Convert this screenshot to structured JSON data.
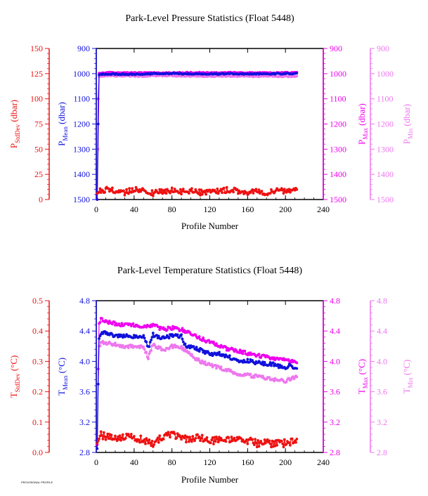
{
  "colors": {
    "stddev": "#ee1111",
    "mean": "#1010dd",
    "max": "#ee00ee",
    "min": "#ee77ee",
    "frame": "#000000"
  },
  "footer": "PROVISIONAL PROFILE",
  "chart_data": [
    {
      "type": "scatter",
      "title": "Park-Level Pressure Statistics (Float 5448)",
      "xlabel": "Profile Number",
      "xlim": [
        0,
        240
      ],
      "xticks": [
        "0",
        "40",
        "80",
        "120",
        "160",
        "200",
        "240"
      ],
      "axes": {
        "stddev": {
          "label_main": "P",
          "label_sub": "StdDev",
          "label_unit": " (dbar)",
          "lim": [
            0,
            150
          ],
          "ticks": [
            "0",
            "25",
            "50",
            "75",
            "100",
            "125",
            "150"
          ]
        },
        "mean": {
          "label_main": "P",
          "label_sub": "Mean",
          "label_unit": " (dbar)",
          "lim": [
            1500,
            900
          ],
          "ticks": [
            "1500",
            "1400",
            "1300",
            "1200",
            "1100",
            "1000",
            "900"
          ]
        },
        "max": {
          "label_main": "P",
          "label_sub": "Max",
          "label_unit": " (dbar)",
          "lim": [
            1500,
            900
          ],
          "ticks": [
            "1500",
            "1400",
            "1300",
            "1200",
            "1100",
            "1000",
            "900"
          ]
        },
        "min": {
          "label_main": "P",
          "label_sub": "Min",
          "label_unit": " (dbar)",
          "lim": [
            1500,
            900
          ],
          "ticks": [
            "1500",
            "1400",
            "1300",
            "1200",
            "1100",
            "1000",
            "900"
          ]
        }
      },
      "series": [
        {
          "key": "mean",
          "profiles": [
            1,
            212
          ],
          "values": [
            [
              1,
              1500
            ],
            [
              2,
              1200
            ],
            [
              3,
              1005
            ],
            [
              10,
              1001
            ],
            [
              30,
              1002
            ],
            [
              50,
              1002
            ],
            [
              60,
              1000
            ],
            [
              80,
              999
            ],
            [
              100,
              1001
            ],
            [
              120,
              1002
            ],
            [
              140,
              1000
            ],
            [
              160,
              1001
            ],
            [
              180,
              1001
            ],
            [
              200,
              1000
            ],
            [
              212,
              999
            ]
          ]
        },
        {
          "key": "max",
          "profiles": [
            1,
            212
          ],
          "values": [
            [
              1,
              1500
            ],
            [
              2,
              1100
            ],
            [
              3,
              998
            ],
            [
              10,
              996
            ],
            [
              30,
              997
            ],
            [
              50,
              996
            ],
            [
              60,
              997
            ],
            [
              80,
              997
            ],
            [
              100,
              996
            ],
            [
              120,
              997
            ],
            [
              140,
              996
            ],
            [
              160,
              997
            ],
            [
              180,
              997
            ],
            [
              200,
              996
            ],
            [
              212,
              996
            ]
          ]
        },
        {
          "key": "min",
          "profiles": [
            1,
            212
          ],
          "values": [
            [
              1,
              1500
            ],
            [
              2,
              1300
            ],
            [
              3,
              1012
            ],
            [
              10,
              1008
            ],
            [
              30,
              1009
            ],
            [
              50,
              1010
            ],
            [
              60,
              1008
            ],
            [
              80,
              1008
            ],
            [
              100,
              1010
            ],
            [
              120,
              1011
            ],
            [
              140,
              1009
            ],
            [
              160,
              1011
            ],
            [
              180,
              1010
            ],
            [
              200,
              1011
            ],
            [
              212,
              1010
            ]
          ]
        },
        {
          "key": "stddev",
          "profiles": [
            1,
            212
          ],
          "values": [
            [
              1,
              6
            ],
            [
              5,
              9
            ],
            [
              10,
              10
            ],
            [
              20,
              9
            ],
            [
              30,
              7
            ],
            [
              40,
              10
            ],
            [
              50,
              9
            ],
            [
              60,
              6
            ],
            [
              70,
              8
            ],
            [
              80,
              9
            ],
            [
              90,
              8
            ],
            [
              100,
              9
            ],
            [
              110,
              7
            ],
            [
              120,
              8
            ],
            [
              130,
              8
            ],
            [
              140,
              10
            ],
            [
              150,
              8
            ],
            [
              160,
              7
            ],
            [
              170,
              8
            ],
            [
              180,
              7
            ],
            [
              190,
              9
            ],
            [
              200,
              8
            ],
            [
              212,
              11
            ]
          ]
        }
      ]
    },
    {
      "type": "scatter",
      "title": "Park-Level Temperature Statistics (Float 5448)",
      "xlabel": "Profile Number",
      "xlim": [
        0,
        240
      ],
      "xticks": [
        "0",
        "40",
        "80",
        "120",
        "160",
        "200",
        "240"
      ],
      "axes": {
        "stddev": {
          "label_main": "T",
          "label_sub": "StdDev",
          "label_unit": " (°C)",
          "lim": [
            0,
            0.5
          ],
          "ticks": [
            "0.0",
            "0.1",
            "0.2",
            "0.3",
            "0.4",
            "0.5"
          ]
        },
        "mean": {
          "label_main": "T",
          "label_sub": "Mean",
          "label_unit": " (°C)",
          "lim": [
            2.8,
            4.8
          ],
          "ticks": [
            "2.8",
            "3.2",
            "3.6",
            "4.0",
            "4.4",
            "4.8"
          ]
        },
        "max": {
          "label_main": "T",
          "label_sub": "Max",
          "label_unit": " (°C)",
          "lim": [
            2.8,
            4.8
          ],
          "ticks": [
            "2.8",
            "3.2",
            "3.6",
            "4.0",
            "4.4",
            "4.8"
          ]
        },
        "min": {
          "label_main": "T",
          "label_sub": "Min",
          "label_unit": " (°C)",
          "lim": [
            2.8,
            4.8
          ],
          "ticks": [
            "2.8",
            "3.2",
            "3.6",
            "4.0",
            "4.4",
            "4.8"
          ]
        }
      },
      "series": [
        {
          "key": "mean",
          "profiles": [
            1,
            212
          ],
          "values": [
            [
              1,
              2.85
            ],
            [
              2,
              3.7
            ],
            [
              3,
              4.3
            ],
            [
              5,
              4.38
            ],
            [
              10,
              4.38
            ],
            [
              20,
              4.33
            ],
            [
              30,
              4.34
            ],
            [
              40,
              4.33
            ],
            [
              50,
              4.32
            ],
            [
              55,
              4.18
            ],
            [
              60,
              4.35
            ],
            [
              70,
              4.3
            ],
            [
              80,
              4.34
            ],
            [
              90,
              4.33
            ],
            [
              95,
              4.18
            ],
            [
              100,
              4.2
            ],
            [
              110,
              4.15
            ],
            [
              120,
              4.1
            ],
            [
              130,
              4.1
            ],
            [
              140,
              4.06
            ],
            [
              150,
              4.0
            ],
            [
              160,
              4.01
            ],
            [
              170,
              3.98
            ],
            [
              180,
              3.97
            ],
            [
              190,
              3.96
            ],
            [
              198,
              3.9
            ],
            [
              205,
              3.95
            ],
            [
              212,
              3.9
            ]
          ]
        },
        {
          "key": "max",
          "profiles": [
            1,
            212
          ],
          "values": [
            [
              1,
              2.9
            ],
            [
              2,
              3.9
            ],
            [
              3,
              4.5
            ],
            [
              5,
              4.55
            ],
            [
              10,
              4.52
            ],
            [
              20,
              4.5
            ],
            [
              30,
              4.48
            ],
            [
              40,
              4.48
            ],
            [
              50,
              4.46
            ],
            [
              60,
              4.48
            ],
            [
              70,
              4.42
            ],
            [
              80,
              4.44
            ],
            [
              90,
              4.42
            ],
            [
              100,
              4.36
            ],
            [
              110,
              4.3
            ],
            [
              120,
              4.26
            ],
            [
              130,
              4.2
            ],
            [
              140,
              4.16
            ],
            [
              150,
              4.14
            ],
            [
              160,
              4.1
            ],
            [
              170,
              4.08
            ],
            [
              180,
              4.06
            ],
            [
              190,
              4.04
            ],
            [
              200,
              4.02
            ],
            [
              212,
              4.0
            ]
          ]
        },
        {
          "key": "min",
          "profiles": [
            1,
            212
          ],
          "values": [
            [
              1,
              2.85
            ],
            [
              2,
              3.7
            ],
            [
              3,
              4.2
            ],
            [
              5,
              4.25
            ],
            [
              10,
              4.24
            ],
            [
              20,
              4.22
            ],
            [
              30,
              4.2
            ],
            [
              40,
              4.2
            ],
            [
              50,
              4.18
            ],
            [
              55,
              4.05
            ],
            [
              60,
              4.22
            ],
            [
              70,
              4.15
            ],
            [
              80,
              4.2
            ],
            [
              90,
              4.18
            ],
            [
              100,
              4.08
            ],
            [
              110,
              4.0
            ],
            [
              120,
              3.96
            ],
            [
              130,
              3.92
            ],
            [
              140,
              3.88
            ],
            [
              150,
              3.84
            ],
            [
              160,
              3.82
            ],
            [
              170,
              3.8
            ],
            [
              180,
              3.78
            ],
            [
              190,
              3.76
            ],
            [
              200,
              3.74
            ],
            [
              212,
              3.8
            ]
          ]
        },
        {
          "key": "stddev",
          "profiles": [
            1,
            212
          ],
          "values": [
            [
              1,
              0.03
            ],
            [
              5,
              0.06
            ],
            [
              10,
              0.05
            ],
            [
              20,
              0.05
            ],
            [
              30,
              0.05
            ],
            [
              40,
              0.05
            ],
            [
              50,
              0.04
            ],
            [
              60,
              0.03
            ],
            [
              70,
              0.05
            ],
            [
              80,
              0.06
            ],
            [
              90,
              0.05
            ],
            [
              100,
              0.04
            ],
            [
              110,
              0.05
            ],
            [
              120,
              0.04
            ],
            [
              130,
              0.04
            ],
            [
              140,
              0.04
            ],
            [
              150,
              0.04
            ],
            [
              160,
              0.04
            ],
            [
              170,
              0.03
            ],
            [
              180,
              0.03
            ],
            [
              190,
              0.03
            ],
            [
              200,
              0.03
            ],
            [
              212,
              0.04
            ]
          ]
        }
      ]
    }
  ]
}
